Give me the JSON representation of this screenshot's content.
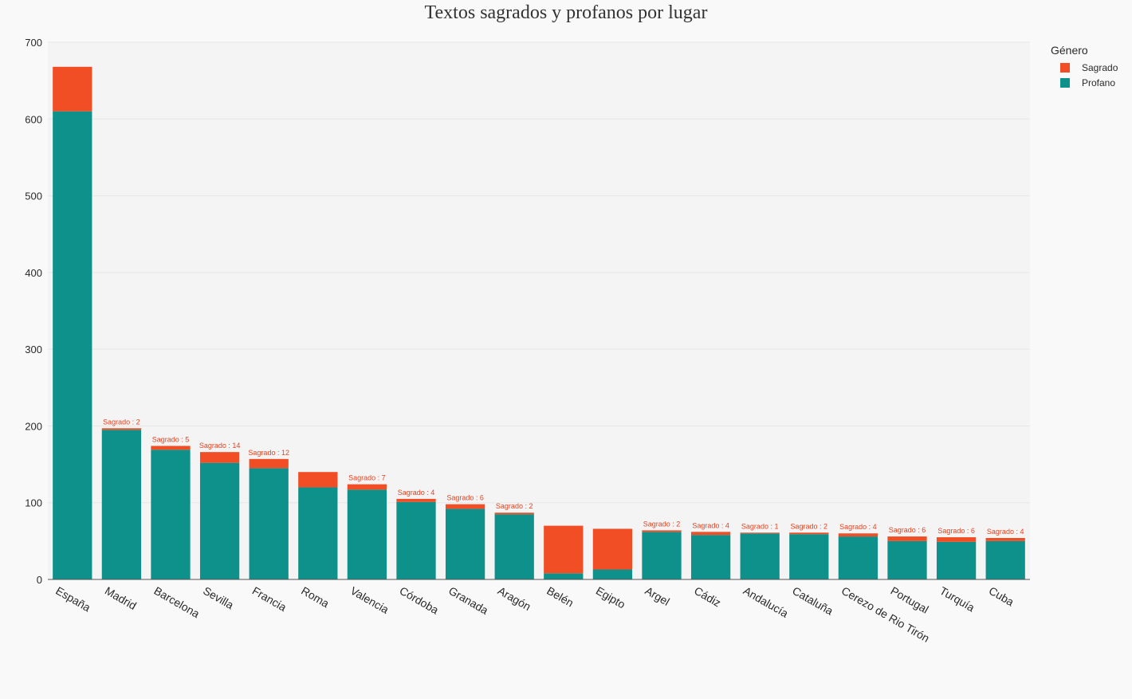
{
  "chart_data": {
    "type": "bar",
    "stacked": true,
    "title": "Textos sagrados y profanos por lugar",
    "xlabel": "",
    "ylabel": "",
    "ylim": [
      0,
      700
    ],
    "y_ticks": [
      0,
      100,
      200,
      300,
      400,
      500,
      600,
      700
    ],
    "grid": true,
    "legend_position": "top-right",
    "legend_title": "Género",
    "categories": [
      "España",
      "Madrid",
      "Barcelona",
      "Sevilla",
      "Francia",
      "Roma",
      "Valencia",
      "Córdoba",
      "Granada",
      "Aragón",
      "Belén",
      "Egipto",
      "Argel",
      "Cádiz",
      "Andalucía",
      "Cataluña",
      "Cerezo de Rio Tirón",
      "Portugal",
      "Turquía",
      "Cuba"
    ],
    "series": [
      {
        "name": "Profano",
        "color": "#0f918b",
        "values": [
          610,
          195,
          169,
          152,
          145,
          120,
          117,
          101,
          92,
          85,
          8,
          13,
          62,
          58,
          60,
          59,
          56,
          50,
          49,
          50
        ]
      },
      {
        "name": "Sagrado",
        "color": "#f24e26",
        "values": [
          58,
          2,
          5,
          14,
          12,
          20,
          7,
          4,
          6,
          2,
          62,
          53,
          2,
          4,
          1,
          2,
          4,
          6,
          6,
          4
        ]
      }
    ],
    "annotations": [
      {
        "category": "Madrid",
        "text": "Sagrado :  2"
      },
      {
        "category": "Barcelona",
        "text": "Sagrado :  5"
      },
      {
        "category": "Sevilla",
        "text": "Sagrado :  14"
      },
      {
        "category": "Francia",
        "text": "Sagrado :  12"
      },
      {
        "category": "Valencia",
        "text": "Sagrado :  7"
      },
      {
        "category": "Córdoba",
        "text": "Sagrado :  4"
      },
      {
        "category": "Granada",
        "text": "Sagrado :  6"
      },
      {
        "category": "Aragón",
        "text": "Sagrado :  2"
      },
      {
        "category": "Argel",
        "text": "Sagrado :  2"
      },
      {
        "category": "Cádiz",
        "text": "Sagrado :  4"
      },
      {
        "category": "Andalucía",
        "text": "Sagrado :  1"
      },
      {
        "category": "Cataluña",
        "text": "Sagrado :  2"
      },
      {
        "category": "Cerezo de Rio Tirón",
        "text": "Sagrado :  4"
      },
      {
        "category": "Portugal",
        "text": "Sagrado :  6"
      },
      {
        "category": "Turquía",
        "text": "Sagrado :  6"
      },
      {
        "category": "Cuba",
        "text": "Sagrado :  4"
      }
    ],
    "legend": [
      {
        "name": "Sagrado",
        "color": "#f24e26"
      },
      {
        "name": "Profano",
        "color": "#0f918b"
      }
    ]
  }
}
